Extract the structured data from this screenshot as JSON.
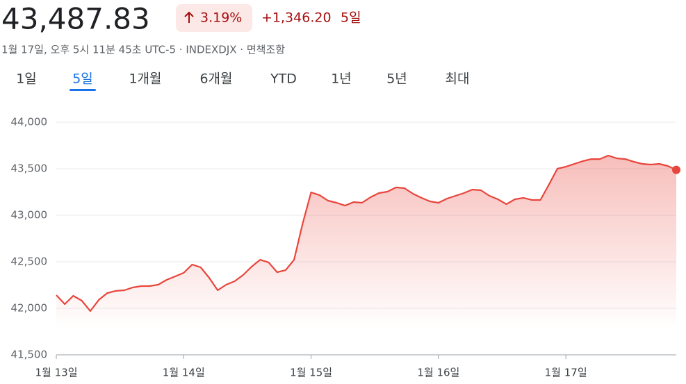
{
  "header": {
    "price": "43,487.83",
    "change_percent": "3.19%",
    "change_abs": "+1,346.20",
    "change_period": "5일",
    "subtitle": "1월 17일, 오후 5시 11분 45초 UTC-5 · INDEXDJX · 면책조항"
  },
  "tabs": {
    "items": [
      "1일",
      "5일",
      "1개월",
      "6개월",
      "YTD",
      "1년",
      "5년",
      "최대"
    ],
    "active": 1
  },
  "chart_data": {
    "type": "line",
    "x": [
      0,
      1,
      2,
      3,
      4,
      5,
      6,
      7,
      8,
      9,
      10,
      11,
      12,
      13,
      14,
      15,
      16,
      17,
      18,
      19,
      20,
      21,
      22,
      23,
      24,
      25,
      26,
      27,
      28,
      29,
      30,
      31,
      32,
      33,
      34,
      35,
      36,
      37,
      38,
      39,
      40,
      41,
      42,
      43,
      44,
      45,
      46,
      47,
      48,
      49,
      50,
      51,
      52,
      53,
      54,
      55,
      56,
      57,
      58,
      59,
      60,
      61,
      62,
      63,
      64,
      65,
      66,
      67,
      68,
      69,
      70,
      71,
      72,
      73
    ],
    "series": [
      {
        "name": "INDEXDJX",
        "color": "#e8453c",
        "values": [
          42142,
          42045,
          42134,
          42082,
          41970,
          42090,
          42164,
          42187,
          42194,
          42224,
          42239,
          42239,
          42254,
          42306,
          42343,
          42381,
          42470,
          42440,
          42328,
          42194,
          42254,
          42291,
          42358,
          42448,
          42522,
          42493,
          42388,
          42410,
          42522,
          42910,
          43246,
          43216,
          43157,
          43134,
          43104,
          43142,
          43134,
          43194,
          43239,
          43254,
          43299,
          43291,
          43231,
          43187,
          43149,
          43134,
          43179,
          43209,
          43239,
          43276,
          43269,
          43209,
          43172,
          43119,
          43172,
          43187,
          43164,
          43164,
          43328,
          43500,
          43522,
          43552,
          43582,
          43604,
          43604,
          43642,
          43612,
          43604,
          43575,
          43552,
          43545,
          43552,
          43530,
          43487.83
        ]
      }
    ],
    "xlim": [
      0,
      73
    ],
    "xticks": [
      {
        "value": 0,
        "label": "1월 13일"
      },
      {
        "value": 15,
        "label": "1월 14일"
      },
      {
        "value": 30,
        "label": "1월 15일"
      },
      {
        "value": 45,
        "label": "1월 16일"
      },
      {
        "value": 60,
        "label": "1월 17일"
      }
    ],
    "ylim": [
      41500,
      44000
    ],
    "yticks": [
      {
        "value": 41500,
        "label": "41,500"
      },
      {
        "value": 42000,
        "label": "42,000"
      },
      {
        "value": 42500,
        "label": "42,500"
      },
      {
        "value": 43000,
        "label": "43,000"
      },
      {
        "value": 43500,
        "label": "43,500"
      },
      {
        "value": 44000,
        "label": "44,000"
      }
    ],
    "grid": true
  }
}
